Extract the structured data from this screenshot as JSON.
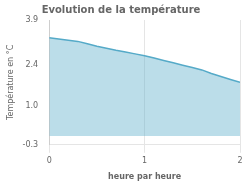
{
  "chart_data": {
    "type": "area",
    "title": "Evolution de la température",
    "xlabel": "heure par heure",
    "ylabel": "Température en °C",
    "x": [
      0.0,
      0.1,
      0.2,
      0.3,
      0.4,
      0.5,
      0.6,
      0.7,
      0.8,
      0.9,
      1.0,
      1.1,
      1.2,
      1.3,
      1.4,
      1.5,
      1.6,
      1.7,
      1.8,
      1.9,
      2.0
    ],
    "values": [
      3.3,
      3.26,
      3.22,
      3.18,
      3.1,
      3.02,
      2.95,
      2.88,
      2.82,
      2.76,
      2.7,
      2.62,
      2.54,
      2.46,
      2.38,
      2.3,
      2.22,
      2.1,
      2.0,
      1.9,
      1.8
    ],
    "color": "#55aac8",
    "xlim": [
      0,
      2
    ],
    "xticks": [
      0,
      1,
      2
    ],
    "ylim": [
      -0.3,
      3.9
    ],
    "yticks": [
      -0.3,
      {
        "value": 1.0,
        "label": "1.0"
      },
      2.4,
      3.9
    ],
    "grid": "x"
  }
}
